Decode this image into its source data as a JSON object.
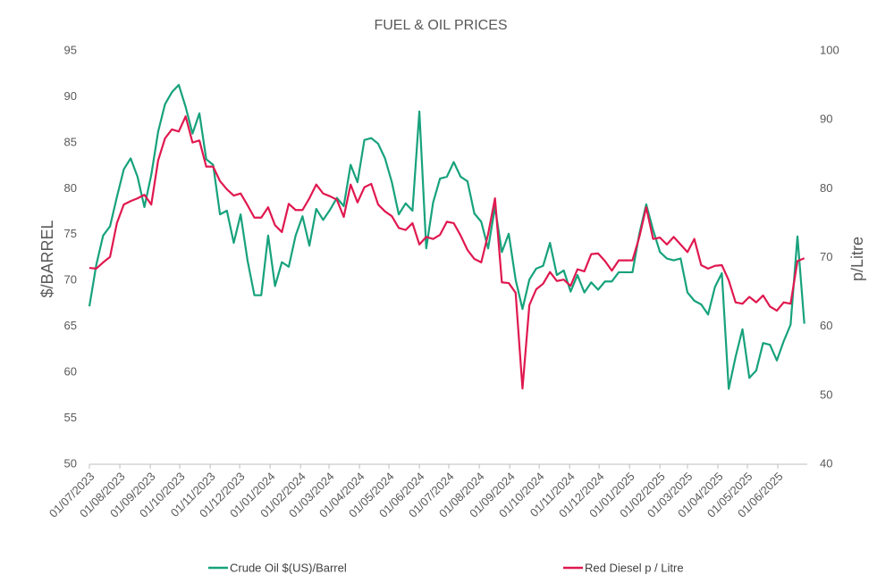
{
  "chart_data": {
    "type": "line",
    "title": "FUEL & OIL PRICES",
    "y_label": "$/BARREL",
    "y2_label": "p/Litre",
    "x": [
      "01/07/2023",
      "08/07/2023",
      "15/07/2023",
      "22/07/2023",
      "29/07/2023",
      "05/08/2023",
      "12/08/2023",
      "19/08/2023",
      "26/08/2023",
      "02/09/2023",
      "09/09/2023",
      "16/09/2023",
      "23/09/2023",
      "30/09/2023",
      "07/10/2023",
      "14/10/2023",
      "21/10/2023",
      "28/10/2023",
      "04/11/2023",
      "11/11/2023",
      "18/11/2023",
      "25/11/2023",
      "02/12/2023",
      "09/12/2023",
      "16/12/2023",
      "23/12/2023",
      "30/12/2023",
      "06/01/2024",
      "13/01/2024",
      "20/01/2024",
      "27/01/2024",
      "03/02/2024",
      "10/02/2024",
      "17/02/2024",
      "24/02/2024",
      "02/03/2024",
      "09/03/2024",
      "16/03/2024",
      "23/03/2024",
      "30/03/2024",
      "06/04/2024",
      "13/04/2024",
      "20/04/2024",
      "27/04/2024",
      "04/05/2024",
      "11/05/2024",
      "18/05/2024",
      "25/05/2024",
      "01/06/2024",
      "08/06/2024",
      "15/06/2024",
      "22/06/2024",
      "29/06/2024",
      "06/07/2024",
      "13/07/2024",
      "20/07/2024",
      "27/07/2024",
      "03/08/2024",
      "10/08/2024",
      "17/08/2024",
      "24/08/2024",
      "31/08/2024",
      "07/09/2024",
      "14/09/2024",
      "21/09/2024",
      "28/09/2024",
      "05/10/2024",
      "12/10/2024",
      "19/10/2024",
      "26/10/2024",
      "02/11/2024",
      "09/11/2024",
      "16/11/2024",
      "23/11/2024",
      "30/11/2024",
      "07/12/2024",
      "14/12/2024",
      "21/12/2024",
      "28/12/2024",
      "04/01/2025",
      "11/01/2025",
      "18/01/2025",
      "25/01/2025",
      "01/02/2025",
      "08/02/2025",
      "15/02/2025",
      "22/02/2025",
      "01/03/2025",
      "08/03/2025",
      "15/03/2025",
      "22/03/2025",
      "29/03/2025",
      "05/04/2025",
      "12/04/2025",
      "19/04/2025",
      "26/04/2025",
      "03/05/2025",
      "10/05/2025",
      "17/05/2025",
      "24/05/2025",
      "31/05/2025",
      "07/06/2025",
      "14/06/2025",
      "21/06/2025",
      "28/06/2025"
    ],
    "xlim": [
      "01/07/2023",
      "01/07/2025"
    ],
    "xticks": [
      "01/07/2023",
      "01/08/2023",
      "01/09/2023",
      "01/10/2023",
      "01/11/2023",
      "01/12/2023",
      "01/01/2024",
      "01/02/2024",
      "01/03/2024",
      "01/04/2024",
      "01/05/2024",
      "01/06/2024",
      "01/07/2024",
      "01/08/2024",
      "01/09/2024",
      "01/10/2024",
      "01/11/2024",
      "01/12/2024",
      "01/01/2025",
      "01/02/2025",
      "01/03/2025",
      "01/04/2025",
      "01/05/2025",
      "01/06/2025"
    ],
    "ylim": [
      50,
      95
    ],
    "yticks": [
      50,
      55,
      60,
      65,
      70,
      75,
      80,
      85,
      90,
      95
    ],
    "y2lim": [
      40,
      100
    ],
    "y2ticks": [
      40,
      50,
      60,
      70,
      80,
      90,
      100
    ],
    "grid": false,
    "legend": "bottom",
    "series": [
      {
        "name": "Crude Oil $(US)/Barrel",
        "color": "#17a27c",
        "values": [
          67.2,
          71.7,
          74.9,
          75.9,
          79.1,
          82.1,
          83.3,
          81.3,
          78,
          81.5,
          86.2,
          89.2,
          90.5,
          91.3,
          88.9,
          86,
          88.2,
          83.2,
          82.6,
          77.2,
          77.6,
          74.1,
          77.2,
          72.2,
          68.4,
          68.4,
          74.9,
          69.4,
          72,
          71.5,
          74.9,
          77,
          73.8,
          77.8,
          76.6,
          77.7,
          79,
          78.1,
          82.6,
          80.7,
          85.3,
          85.5,
          84.9,
          83.3,
          80.7,
          77.2,
          78.4,
          77.6,
          88.4,
          73.5,
          78.5,
          81.1,
          81.3,
          82.9,
          81.3,
          80.8,
          77.3,
          76.4,
          73.5,
          78,
          73.1,
          75.1,
          70.1,
          66.9,
          70.1,
          71.3,
          71.6,
          74.1,
          70.6,
          71.1,
          68.8,
          70.6,
          68.7,
          69.8,
          69,
          69.9,
          69.9,
          70.9,
          70.9,
          70.9,
          75.1,
          78.3,
          75.5,
          73.1,
          72.4,
          72.2,
          72.4,
          68.7,
          67.8,
          67.4,
          66.3,
          69.3,
          70.8,
          58.2,
          61.7,
          64.7,
          59.4,
          60.2,
          63.2,
          63,
          61.3,
          63.4,
          65.2,
          74.8,
          65.3
        ]
      },
      {
        "name": "Red Diesel p / Litre",
        "color": "#e0184f",
        "axis": "y2",
        "values": [
          68.5,
          68.4,
          69.3,
          70.1,
          75,
          77.7,
          78.2,
          78.6,
          79.1,
          77.7,
          84.1,
          87.3,
          88.6,
          88.3,
          90.5,
          86.7,
          87,
          83.2,
          83.2,
          81.1,
          79.9,
          79,
          79.3,
          77.6,
          75.8,
          75.8,
          77.3,
          74.7,
          73.7,
          77.8,
          76.9,
          76.9,
          78.6,
          80.6,
          79.3,
          78.9,
          78.4,
          75.9,
          80.6,
          78,
          80.2,
          80.7,
          77.7,
          76.7,
          76,
          74.3,
          74,
          75,
          71.9,
          73,
          72.7,
          73.3,
          75.2,
          75,
          73.2,
          71.1,
          69.8,
          69.3,
          73.4,
          78.6,
          66.4,
          66.3,
          64.9,
          51,
          63.1,
          65.4,
          66.2,
          67.9,
          66.6,
          66.8,
          65.9,
          68.3,
          68,
          70.5,
          70.6,
          69.5,
          68.1,
          69.6,
          69.6,
          69.6,
          73,
          77.3,
          72.7,
          72.9,
          71.9,
          73,
          71.9,
          70.8,
          72.7,
          68.9,
          68.4,
          68.8,
          68.9,
          66.7,
          63.5,
          63.3,
          64.3,
          63.5,
          64.5,
          62.9,
          62.3,
          63.5,
          63.3,
          69.5,
          69.9
        ]
      }
    ]
  }
}
